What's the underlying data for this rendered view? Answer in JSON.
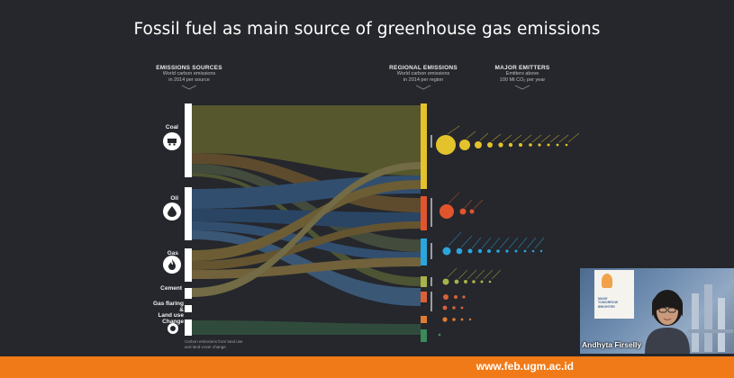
{
  "slide": {
    "title": "Fossil fuel as main source of greenhouse gas emissions",
    "headers": {
      "sources": {
        "title": "EMISSIONS SOURCES",
        "sub1": "World carbon emissions",
        "sub2": "in 2014 per source"
      },
      "regional": {
        "title": "REGIONAL EMISSIONS",
        "sub1": "World carbon emissions",
        "sub2": "in 2014 per region"
      },
      "major": {
        "title": "MAJOR EMITTERS",
        "sub1": "Emitters above",
        "sub2": "100 Mt CO₂ per year"
      }
    },
    "sources": [
      {
        "label": "Coal",
        "icon": "coal-cart-icon"
      },
      {
        "label": "Oil",
        "icon": "oil-drop-icon"
      },
      {
        "label": "Gas",
        "icon": "gas-flame-icon"
      },
      {
        "label": "Cement",
        "icon": ""
      },
      {
        "label": "Gas flaring &",
        "icon": ""
      },
      {
        "label": "Land use Change",
        "icon": "land-use-icon"
      }
    ],
    "landuse_note": [
      "Carbon emissions from land use",
      "and land-cover change"
    ],
    "colors": {
      "coal": "#807f2e",
      "oil": "#3c6ea6",
      "gas": "#a68a3c",
      "asia": "#e3c22c",
      "north_america": "#e1552c",
      "europe": "#2aa5dd",
      "middle_east": "#a7b34a",
      "africa_latam": "#d9613a",
      "other": "#e07b32",
      "landuse": "#3a8a5a",
      "background": "#25272c",
      "footer": "#f07a17"
    }
  },
  "webcam": {
    "presenter_name": "Andhyta Firselly",
    "banner_text": [
      "MAKE",
      "TOMORROW",
      "BRIGHTER"
    ]
  },
  "footer": {
    "url": "www.feb.ugm.ac.id"
  }
}
